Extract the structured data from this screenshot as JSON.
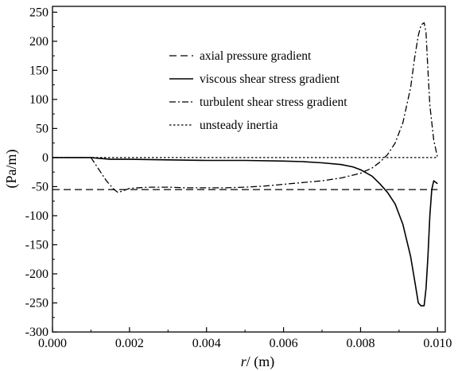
{
  "chart_data": {
    "type": "line",
    "xlabel_var": "r",
    "xlabel_unit": "/ (m)",
    "ylabel": "(Pa/m)",
    "xlim": [
      0.0,
      0.0102
    ],
    "ylim": [
      -300,
      260
    ],
    "xticks": [
      0.0,
      0.002,
      0.004,
      0.006,
      0.008,
      0.01
    ],
    "xtick_labels": [
      "0.000",
      "0.002",
      "0.004",
      "0.006",
      "0.008",
      "0.010"
    ],
    "yticks": [
      -300,
      -250,
      -200,
      -150,
      -100,
      -50,
      0,
      50,
      100,
      150,
      200,
      250
    ],
    "ytick_labels": [
      "-300",
      "-250",
      "-200",
      "-150",
      "-100",
      "-50",
      "0",
      "50",
      "100",
      "150",
      "200",
      "250"
    ],
    "grid": false,
    "legend_position": "top-center",
    "series": [
      {
        "name": "axial pressure gradient",
        "style": "dashed",
        "x": [
          0.0,
          0.01
        ],
        "y": [
          -55,
          -55
        ]
      },
      {
        "name": "viscous shear stress gradient",
        "style": "solid",
        "x": [
          0.0,
          0.001,
          0.0015,
          0.002,
          0.003,
          0.004,
          0.005,
          0.006,
          0.0065,
          0.007,
          0.0075,
          0.0078,
          0.008,
          0.0083,
          0.0085,
          0.0087,
          0.0089,
          0.0091,
          0.0093,
          0.0094,
          0.0095,
          0.00957,
          0.00965,
          0.0097,
          0.00975,
          0.0098,
          0.00985,
          0.0099,
          0.01
        ],
        "y": [
          0,
          0,
          -3,
          -3,
          -4,
          -5,
          -5,
          -6,
          -7,
          -9,
          -12,
          -16,
          -21,
          -32,
          -45,
          -60,
          -80,
          -115,
          -170,
          -210,
          -250,
          -255,
          -255,
          -225,
          -170,
          -100,
          -55,
          -40,
          -45
        ]
      },
      {
        "name": "turbulent shear stress gradient",
        "style": "dashdot",
        "x": [
          0.0,
          0.001,
          0.0012,
          0.0014,
          0.0016,
          0.0017,
          0.0018,
          0.002,
          0.0025,
          0.003,
          0.0035,
          0.004,
          0.0045,
          0.005,
          0.0055,
          0.006,
          0.0065,
          0.007,
          0.0075,
          0.008,
          0.0083,
          0.0085,
          0.0087,
          0.0089,
          0.0091,
          0.0093,
          0.0094,
          0.0095,
          0.00957,
          0.00965,
          0.0097,
          0.00975,
          0.0098,
          0.0099,
          0.01
        ],
        "y": [
          0,
          0,
          -20,
          -40,
          -55,
          -60,
          -58,
          -53,
          -51,
          -51,
          -52,
          -52,
          -52,
          -51,
          -49,
          -46,
          -43,
          -40,
          -35,
          -27,
          -18,
          -8,
          5,
          25,
          60,
          120,
          170,
          210,
          228,
          232,
          215,
          150,
          90,
          30,
          0
        ]
      },
      {
        "name": "unsteady inertia",
        "style": "dotted",
        "x": [
          0.0,
          0.01
        ],
        "y": [
          0,
          0
        ]
      }
    ]
  }
}
